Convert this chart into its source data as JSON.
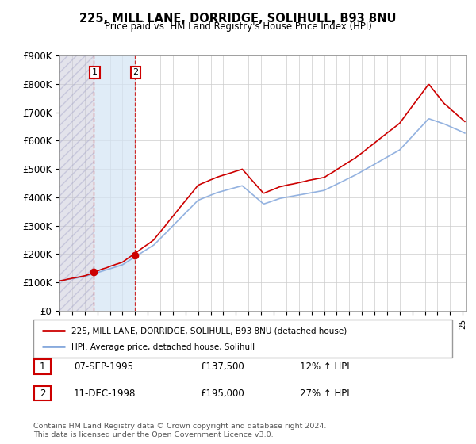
{
  "title": "225, MILL LANE, DORRIDGE, SOLIHULL, B93 8NU",
  "subtitle": "Price paid vs. HM Land Registry's House Price Index (HPI)",
  "legend_line1": "225, MILL LANE, DORRIDGE, SOLIHULL, B93 8NU (detached house)",
  "legend_line2": "HPI: Average price, detached house, Solihull",
  "footnote": "Contains HM Land Registry data © Crown copyright and database right 2024.\nThis data is licensed under the Open Government Licence v3.0.",
  "transaction1_date": "07-SEP-1995",
  "transaction1_price": 137500,
  "transaction1_hpi": "12% ↑ HPI",
  "transaction2_date": "11-DEC-1998",
  "transaction2_price": 195000,
  "transaction2_hpi": "27% ↑ HPI",
  "sale_color": "#cc0000",
  "hpi_color": "#88aadd",
  "ylim": [
    0,
    900000
  ],
  "yticks": [
    0,
    100000,
    200000,
    300000,
    400000,
    500000,
    600000,
    700000,
    800000,
    900000
  ],
  "ytick_labels": [
    "£0",
    "£100K",
    "£200K",
    "£300K",
    "£400K",
    "£500K",
    "£600K",
    "£700K",
    "£800K",
    "£900K"
  ],
  "sale1_x": 1995.69,
  "sale1_y": 137500,
  "sale2_x": 1998.95,
  "sale2_y": 195000,
  "xmin": 1993.0,
  "xmax": 2025.3,
  "hatch_color": "#c8c8d8",
  "fill_between_color": "#d4e4f4"
}
